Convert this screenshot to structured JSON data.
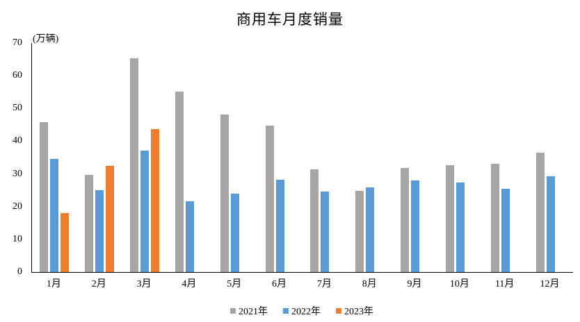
{
  "chart_data": {
    "type": "bar",
    "title": "商用车月度销量",
    "unit_label": "(万辆)",
    "categories": [
      "1月",
      "2月",
      "3月",
      "4月",
      "5月",
      "6月",
      "7月",
      "8月",
      "9月",
      "10月",
      "11月",
      "12月"
    ],
    "series": [
      {
        "name": "2021年",
        "color": "#A6A6A6",
        "values": [
          45.9,
          29.8,
          65.3,
          55.2,
          48.2,
          44.8,
          31.4,
          24.9,
          31.9,
          32.6,
          33.1,
          36.5
        ]
      },
      {
        "name": "2022年",
        "color": "#5B9BD5",
        "values": [
          34.5,
          25.1,
          37.2,
          21.7,
          24.0,
          28.3,
          24.7,
          25.9,
          28.0,
          27.4,
          25.5,
          29.3
        ]
      },
      {
        "name": "2023年",
        "color": "#ED7D31",
        "values": [
          18.1,
          32.4,
          43.6,
          null,
          null,
          null,
          null,
          null,
          null,
          null,
          null,
          null
        ]
      }
    ],
    "xlabel": "",
    "ylabel": "(万辆)",
    "ylim": [
      0,
      70
    ],
    "yticks": [
      0,
      10,
      20,
      30,
      40,
      50,
      60,
      70
    ],
    "grid": false,
    "legend_position": "bottom",
    "axis_color": "#000000"
  }
}
